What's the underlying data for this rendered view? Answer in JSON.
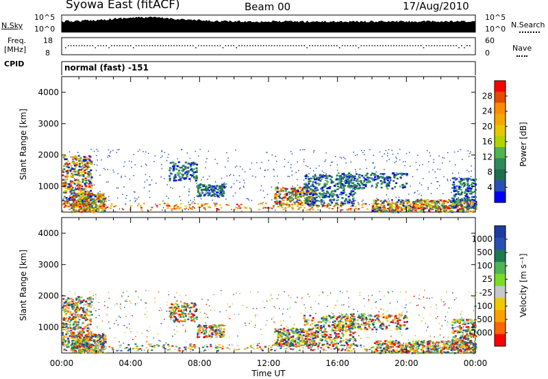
{
  "header": {
    "station": "Syowa East (fitACF)",
    "beam": "Beam 00",
    "date": "17/Aug/2010"
  },
  "top_panels": {
    "nsky_label": "N.Sky",
    "nsky_ticks": [
      "10^5",
      "10^0"
    ],
    "nsearch_label": "N.Search",
    "nsearch_ticks": [
      "10^5",
      "10^0"
    ],
    "freq_label_1": "Freq.",
    "freq_label_2": "[MHz]",
    "freq_ticks": [
      "18",
      "8"
    ],
    "nave_label": "Nave",
    "nave_ticks": [
      "60",
      "0"
    ],
    "cpid_label": "CPID",
    "cpid_value": "normal (fast) -151"
  },
  "chart_data": [
    {
      "type": "heatmap",
      "name": "power",
      "ylabel": "Slant Range [km]",
      "xlabel": "",
      "yticks": [
        "4000",
        "3000",
        "2000",
        "1000"
      ],
      "ylim": [
        180,
        4500
      ],
      "xlim": [
        "00:00",
        "24:00"
      ],
      "colorbar": {
        "label": "Power [dB]",
        "ticks": [
          "28",
          "24",
          "20",
          "16",
          "12",
          "8",
          "4"
        ],
        "colors": [
          "#ff0000",
          "#e64a00",
          "#ff8c00",
          "#f5a800",
          "#e6c800",
          "#b4d200",
          "#50b450",
          "#2e8b57",
          "#1e6e50",
          "#2850b4",
          "#0000ff"
        ]
      }
    },
    {
      "type": "heatmap",
      "name": "velocity",
      "ylabel": "Slant Range [km]",
      "xlabel": "Time UT",
      "yticks": [
        "4000",
        "3000",
        "2000",
        "1000"
      ],
      "xticks": [
        "00:00",
        "04:00",
        "08:00",
        "12:00",
        "16:00",
        "20:00",
        "00:00"
      ],
      "ylim": [
        180,
        4500
      ],
      "xlim": [
        "00:00",
        "24:00"
      ],
      "colorbar": {
        "label": "Velocity [m s^-1]",
        "ticks": [
          "1000",
          "500",
          "100",
          "25",
          "-25",
          "-100",
          "-500",
          "-1000"
        ],
        "colors": [
          "#1e3ca0",
          "#2850b4",
          "#1e7850",
          "#50b450",
          "#78dc28",
          "#c8c8c8",
          "#f0c800",
          "#ffa000",
          "#ff6400",
          "#ff0000"
        ]
      }
    }
  ]
}
